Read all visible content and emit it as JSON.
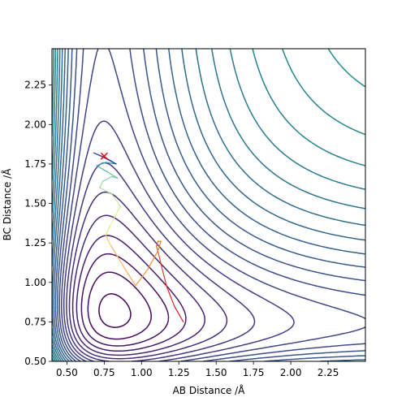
{
  "chart_data": {
    "type": "contour",
    "title": "",
    "xlabel": "AB Distance /Å",
    "ylabel": "BC Distance /Å",
    "xlim": [
      0.4,
      2.5
    ],
    "ylim": [
      0.5,
      2.48
    ],
    "x_ticks": [
      "0.50",
      "0.75",
      "1.00",
      "1.25",
      "1.50",
      "1.75",
      "2.00",
      "2.25"
    ],
    "y_ticks": [
      "0.50",
      "0.75",
      "1.00",
      "1.25",
      "1.50",
      "1.75",
      "2.00",
      "2.25"
    ],
    "x_tick_values": [
      0.5,
      0.75,
      1.0,
      1.25,
      1.5,
      1.75,
      2.0,
      2.25
    ],
    "y_tick_values": [
      0.5,
      0.75,
      1.0,
      1.25,
      1.5,
      1.75,
      2.0,
      2.25
    ],
    "grid": false,
    "colormap": "viridis",
    "potential_model": {
      "De": 1.0,
      "re": 0.74,
      "beta": 1.94,
      "min_level": -1.38,
      "level_step": 0.08,
      "level_count": 40
    },
    "colormap_stops": [
      "#440154",
      "#482475",
      "#414487",
      "#355f8d",
      "#2a788e",
      "#21918c",
      "#22a884",
      "#44bf70",
      "#7ad151",
      "#bddf26",
      "#fde725"
    ],
    "trajectories": [
      {
        "label": "",
        "color_gradient": true,
        "points": [
          [
            1.28,
            0.75
          ],
          [
            1.22,
            0.85
          ],
          [
            1.17,
            0.97
          ],
          [
            1.14,
            1.08
          ],
          [
            1.12,
            1.16
          ],
          [
            1.1,
            1.23
          ],
          [
            1.11,
            1.26
          ],
          [
            1.13,
            1.26
          ],
          [
            1.11,
            1.2
          ],
          [
            1.04,
            1.08
          ],
          [
            0.96,
            0.98
          ],
          [
            0.88,
            1.1
          ],
          [
            0.79,
            1.24
          ],
          [
            0.76,
            1.3
          ],
          [
            0.79,
            1.36
          ],
          [
            0.84,
            1.45
          ],
          [
            0.86,
            1.48
          ],
          [
            0.8,
            1.56
          ],
          [
            0.72,
            1.6
          ],
          [
            0.74,
            1.64
          ],
          [
            0.8,
            1.67
          ],
          [
            0.84,
            1.66
          ],
          [
            0.77,
            1.7
          ],
          [
            0.7,
            1.74
          ],
          [
            0.76,
            1.76
          ],
          [
            0.83,
            1.75
          ],
          [
            0.76,
            1.79
          ],
          [
            0.68,
            1.82
          ],
          [
            0.75,
            1.79
          ],
          [
            0.83,
            1.75
          ]
        ]
      }
    ],
    "marker": {
      "symbol": "x",
      "x": 0.75,
      "y": 1.8,
      "color": "#ff0000"
    }
  }
}
